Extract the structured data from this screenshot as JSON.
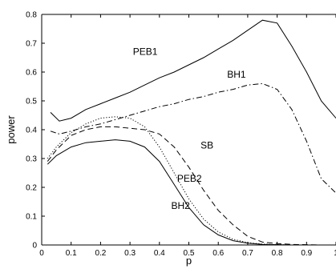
{
  "chart_data": {
    "type": "line",
    "title": "",
    "xlabel": "p",
    "ylabel": "power",
    "xlim": [
      0,
      1
    ],
    "ylim": [
      0,
      0.8
    ],
    "xticks": [
      "0",
      "0.1",
      "0.2",
      "0.3",
      "0.4",
      "0.5",
      "0.6",
      "0.7",
      "0.8",
      "0.9",
      "1"
    ],
    "yticks": [
      "0",
      "0.1",
      "0.2",
      "0.3",
      "0.4",
      "0.5",
      "0.6",
      "0.7",
      "0.8"
    ],
    "grid": false,
    "legend": "none",
    "series": [
      {
        "name": "PEB1",
        "style": "solid",
        "x": [
          0.03,
          0.06,
          0.1,
          0.15,
          0.2,
          0.25,
          0.3,
          0.35,
          0.4,
          0.45,
          0.5,
          0.55,
          0.6,
          0.65,
          0.7,
          0.75,
          0.8,
          0.85,
          0.9,
          0.95,
          1.0
        ],
        "y": [
          0.46,
          0.43,
          0.44,
          0.47,
          0.49,
          0.51,
          0.53,
          0.555,
          0.58,
          0.6,
          0.625,
          0.65,
          0.68,
          0.71,
          0.745,
          0.78,
          0.77,
          0.69,
          0.6,
          0.5,
          0.44
        ]
      },
      {
        "name": "BH1",
        "style": "dashdot",
        "x": [
          0.03,
          0.06,
          0.1,
          0.15,
          0.2,
          0.25,
          0.3,
          0.35,
          0.4,
          0.45,
          0.5,
          0.55,
          0.6,
          0.65,
          0.7,
          0.75,
          0.8,
          0.85,
          0.9,
          0.95,
          1.0
        ],
        "y": [
          0.395,
          0.385,
          0.395,
          0.41,
          0.42,
          0.435,
          0.45,
          0.465,
          0.48,
          0.49,
          0.505,
          0.515,
          0.53,
          0.54,
          0.555,
          0.56,
          0.54,
          0.47,
          0.36,
          0.23,
          0.18
        ]
      },
      {
        "name": "SB",
        "style": "dashed",
        "x": [
          0.02,
          0.05,
          0.1,
          0.15,
          0.2,
          0.25,
          0.3,
          0.35,
          0.4,
          0.45,
          0.5,
          0.55,
          0.6,
          0.65,
          0.7,
          0.75,
          0.8,
          0.85,
          0.9,
          0.95,
          1.0
        ],
        "y": [
          0.29,
          0.33,
          0.38,
          0.4,
          0.41,
          0.41,
          0.405,
          0.4,
          0.385,
          0.34,
          0.27,
          0.19,
          0.12,
          0.07,
          0.03,
          0.01,
          0.005,
          0.002,
          0.001,
          0.0,
          0.0
        ]
      },
      {
        "name": "PEB2",
        "style": "dotted",
        "x": [
          0.02,
          0.05,
          0.1,
          0.15,
          0.2,
          0.25,
          0.3,
          0.35,
          0.4,
          0.45,
          0.5,
          0.55,
          0.6,
          0.65,
          0.7,
          0.75,
          0.8,
          0.85,
          0.9,
          0.95,
          1.0
        ],
        "y": [
          0.3,
          0.34,
          0.39,
          0.42,
          0.44,
          0.445,
          0.44,
          0.41,
          0.34,
          0.25,
          0.16,
          0.09,
          0.045,
          0.02,
          0.008,
          0.003,
          0.001,
          0.0,
          0.0,
          0.0,
          0.0
        ]
      },
      {
        "name": "BH2",
        "style": "solid",
        "x": [
          0.02,
          0.05,
          0.1,
          0.15,
          0.2,
          0.25,
          0.3,
          0.35,
          0.4,
          0.45,
          0.5,
          0.55,
          0.6,
          0.65,
          0.7,
          0.75,
          0.8,
          0.85,
          0.9,
          0.95,
          1.0
        ],
        "y": [
          0.28,
          0.31,
          0.34,
          0.355,
          0.36,
          0.365,
          0.36,
          0.34,
          0.29,
          0.21,
          0.13,
          0.07,
          0.035,
          0.015,
          0.006,
          0.002,
          0.001,
          0.0,
          0.0,
          0.0,
          0.0
        ]
      }
    ],
    "annotations": [
      {
        "text": "PEB1",
        "x": 0.31,
        "y": 0.66
      },
      {
        "text": "BH1",
        "x": 0.63,
        "y": 0.58
      },
      {
        "text": "SB",
        "x": 0.54,
        "y": 0.335
      },
      {
        "text": "PEB2",
        "x": 0.46,
        "y": 0.22
      },
      {
        "text": "BH2",
        "x": 0.44,
        "y": 0.125
      }
    ]
  }
}
